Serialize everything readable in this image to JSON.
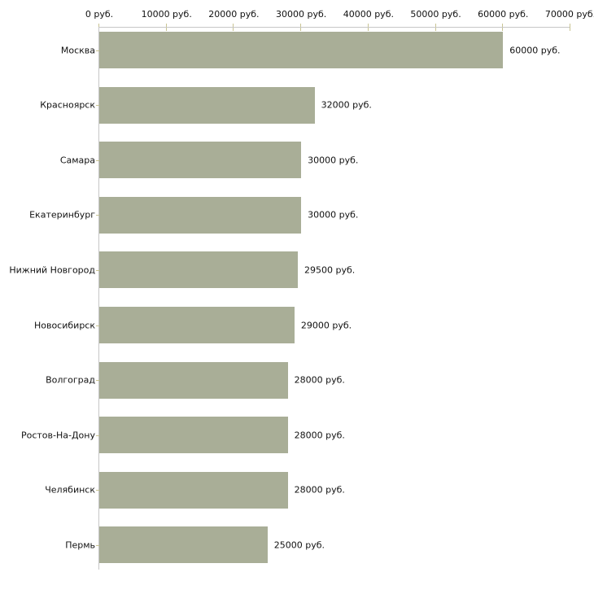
{
  "chart_data": {
    "type": "bar",
    "orientation": "horizontal",
    "title": "",
    "xlabel": "",
    "ylabel": "",
    "categories": [
      "Москва",
      "Красноярск",
      "Самара",
      "Екатеринбург",
      "Нижний Новгород",
      "Новосибирск",
      "Волгоград",
      "Ростов-На-Дону",
      "Челябинск",
      "Пермь"
    ],
    "values": [
      60000,
      32000,
      30000,
      30000,
      29500,
      29000,
      28000,
      28000,
      28000,
      25000
    ],
    "value_labels": [
      "60000 руб.",
      "32000 руб.",
      "30000 руб.",
      "30000 руб.",
      "29500 руб.",
      "29000 руб.",
      "28000 руб.",
      "28000 руб.",
      "28000 руб.",
      "25000 руб."
    ],
    "x_ticks": [
      0,
      10000,
      20000,
      30000,
      40000,
      50000,
      60000,
      70000
    ],
    "x_tick_labels": [
      "0 руб.",
      "10000 руб.",
      "20000 руб.",
      "30000 руб.",
      "40000 руб.",
      "50000 руб.",
      "60000 руб.",
      "70000 руб."
    ],
    "xlim": [
      0,
      70000
    ],
    "grid": false,
    "legend": false,
    "bar_color": "#a9ae97",
    "axis_line_color": "#c6c6c6",
    "tick_mark_color": "#c9c493",
    "text_color": "#111111"
  }
}
